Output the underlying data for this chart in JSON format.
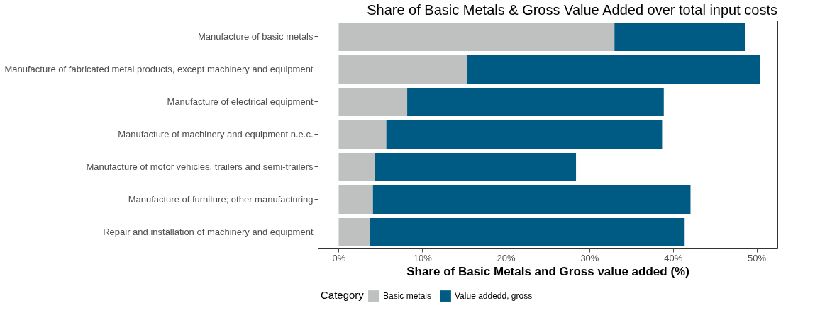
{
  "chart_data": {
    "type": "bar",
    "orientation": "horizontal",
    "stacked": true,
    "title": "Share of Basic Metals & Gross Value Added over total input costs",
    "xlabel": "Share of Basic Metals and Gross value added (%)",
    "legend_title": "Category",
    "legend": "bottom",
    "grid": false,
    "categories": [
      "Manufacture of basic metals",
      "Manufacture of fabricated metal products, except machinery and equipment",
      "Manufacture of electrical equipment",
      "Manufacture of machinery and equipment n.e.c.",
      "Manufacture of motor vehicles, trailers and semi-trailers",
      "Manufacture of furniture; other manufacturing",
      "Repair and installation of machinery and equipment"
    ],
    "series": [
      {
        "name": "Basic metals",
        "color": "#bfc0c0",
        "values": [
          33.0,
          15.4,
          8.2,
          5.7,
          4.3,
          4.1,
          3.7
        ]
      },
      {
        "name": "Value addedd, gross",
        "color": "#005b84",
        "values": [
          15.6,
          35.0,
          30.7,
          33.0,
          24.1,
          38.0,
          37.7
        ]
      }
    ],
    "xlim": [
      -2.5,
      52.5
    ],
    "xticks": [
      {
        "value": 0,
        "label": "0%"
      },
      {
        "value": 10,
        "label": "10%"
      },
      {
        "value": 20,
        "label": "20%"
      },
      {
        "value": 30,
        "label": "30%"
      },
      {
        "value": 40,
        "label": "40%"
      },
      {
        "value": 50,
        "label": "50%"
      }
    ]
  }
}
